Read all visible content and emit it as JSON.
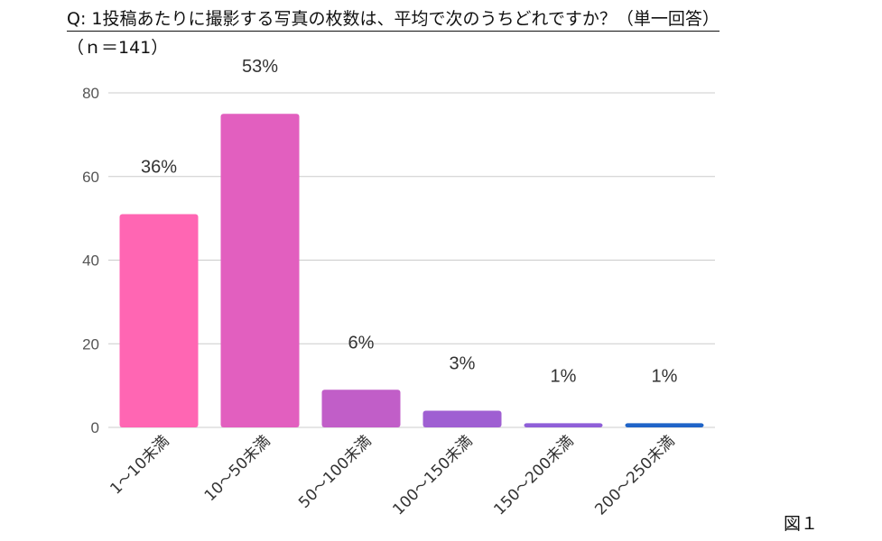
{
  "header": {
    "title": "Q: 1投稿あたりに撮影する写真の枚数は、平均で次のうちどれですか？（単一回答）",
    "sample_size": "（ｎ＝141）",
    "figure_label": "図１"
  },
  "chart_data": {
    "type": "bar",
    "categories": [
      "1～10未満",
      "10～50未満",
      "50～100未満",
      "100～150未満",
      "150～200未満",
      "200～250未満"
    ],
    "values": [
      51,
      75,
      9,
      4,
      1,
      1
    ],
    "data_labels": [
      "36%",
      "53%",
      "6%",
      "3%",
      "1%",
      "1%"
    ],
    "colors": [
      "#ff66b3",
      "#e25fbf",
      "#c15ec8",
      "#9f5fd2",
      "#8f5fd8",
      "#1f64c8"
    ],
    "yticks": [
      "0",
      "20",
      "40",
      "60",
      "80"
    ],
    "ylim": [
      0,
      80
    ],
    "grid": true,
    "legend": "none"
  }
}
